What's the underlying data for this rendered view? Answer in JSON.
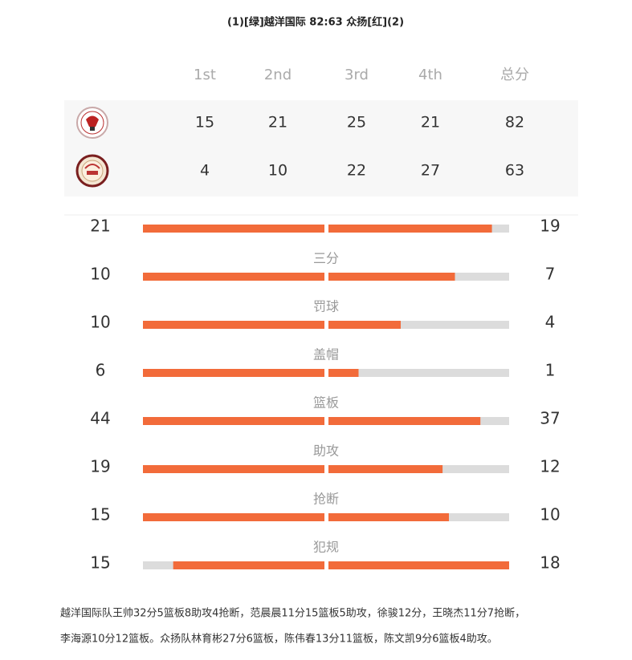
{
  "title": "(1)[绿]越洋国际 82:63 众扬[红](2)",
  "score_table": {
    "headers": [
      "1st",
      "2nd",
      "3rd",
      "4th",
      "总分"
    ],
    "rows": [
      {
        "scores": [
          15,
          21,
          25,
          21,
          82
        ]
      },
      {
        "scores": [
          4,
          10,
          22,
          27,
          63
        ]
      }
    ]
  },
  "stats": [
    {
      "home": 21,
      "away": 19
    },
    {
      "label": "三分",
      "home": 10,
      "away": 7
    },
    {
      "label": "罚球",
      "home": 10,
      "away": 4
    },
    {
      "label": "盖帽",
      "home": 6,
      "away": 1
    },
    {
      "label": "篮板",
      "home": 44,
      "away": 37
    },
    {
      "label": "助攻",
      "home": 19,
      "away": 12
    },
    {
      "label": "抢断",
      "home": 15,
      "away": 10
    },
    {
      "label": "犯规",
      "home": 15,
      "away": 18
    }
  ],
  "footer": {
    "lines": [
      "越洋国际队王帅32分5篮板8助攻4抢断，范晨晨11分15篮板5助攻，徐骏12分，王晓杰11分7抢断，",
      "李海源10分12篮板。众扬队林育彬27分6篮板，陈伟春13分11篮板，陈文凯9分6篮板4助攻。"
    ]
  }
}
